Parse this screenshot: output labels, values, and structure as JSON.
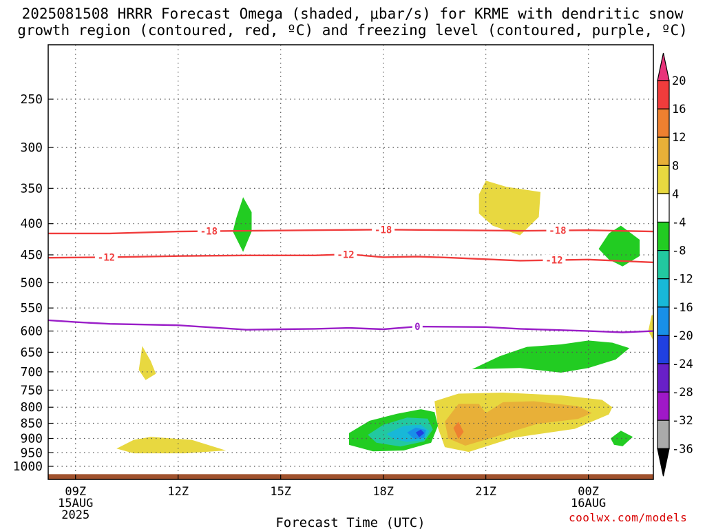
{
  "title": {
    "line1": "2025081508 HRRR Forecast Omega (shaded, μbar/s) for KRME with dendritic snow",
    "line2": "growth region (contoured, red, ºC) and freezing level (contoured, purple, ºC)"
  },
  "credit": "coolwx.com/models",
  "chart_data": {
    "type": "heatmap",
    "title": "2025081508 HRRR Forecast Omega (shaded, μbar/s) for KRME with dendritic snow growth region (contoured, red, ºC) and freezing level (contoured, purple, ºC)",
    "xlabel": "Forecast Time (UTC)",
    "ylabel": "",
    "x_range": [
      8.2,
      25.9
    ],
    "y_axis": "pressure (hPa), reversed",
    "ylim": [
      1050,
      200
    ],
    "x_ticks": [
      {
        "x": 9,
        "lines": [
          "09Z",
          "15AUG",
          "2025"
        ]
      },
      {
        "x": 12,
        "lines": [
          "12Z"
        ]
      },
      {
        "x": 15,
        "lines": [
          "15Z"
        ]
      },
      {
        "x": 18,
        "lines": [
          "18Z"
        ]
      },
      {
        "x": 21,
        "lines": [
          "21Z"
        ]
      },
      {
        "x": 24,
        "lines": [
          "00Z",
          "16AUG"
        ]
      }
    ],
    "y_ticks": [
      250,
      300,
      350,
      400,
      450,
      500,
      550,
      600,
      650,
      700,
      750,
      800,
      850,
      900,
      950,
      1000
    ],
    "grid": true,
    "colorbar": {
      "labels": [
        "20",
        "16",
        "12",
        "8",
        "4",
        "-4",
        "-8",
        "-12",
        "-16",
        "-20",
        "-24",
        "-28",
        "-32",
        "-36"
      ],
      "colors": [
        "#e8337a",
        "#f03c3c",
        "#ee8030",
        "#e8b038",
        "#e8d840",
        "#ffffff",
        "#22cc22",
        "#22c8a0",
        "#18b8d8",
        "#1890e8",
        "#2040e0",
        "#6820c8",
        "#a018c8",
        "#aaaaaa",
        "#000000"
      ]
    },
    "ground": {
      "from_hr": 8.2,
      "to_hr": 25.9,
      "top_hpa": 1030,
      "color": "#a0522d"
    },
    "contours": [
      {
        "label": "-18",
        "color": "#f03c3c",
        "points": [
          [
            8.2,
            415
          ],
          [
            10,
            415
          ],
          [
            12,
            412
          ],
          [
            14,
            411
          ],
          [
            16,
            410
          ],
          [
            18,
            409
          ],
          [
            20,
            410
          ],
          [
            22,
            411
          ],
          [
            24,
            410
          ],
          [
            25.9,
            412
          ]
        ],
        "label_at": [
          12.9,
          18.0,
          23.1
        ]
      },
      {
        "label": "-12",
        "color": "#f03c3c",
        "points": [
          [
            8.2,
            455
          ],
          [
            10,
            454
          ],
          [
            12,
            452
          ],
          [
            14,
            451
          ],
          [
            16,
            451
          ],
          [
            17,
            449
          ],
          [
            18,
            454
          ],
          [
            19,
            453
          ],
          [
            20,
            455
          ],
          [
            22,
            460
          ],
          [
            24,
            458
          ],
          [
            25.9,
            463
          ]
        ],
        "label_at": [
          9.9,
          16.9,
          23.0
        ]
      },
      {
        "label": "0",
        "color": "#9a1ec8",
        "points": [
          [
            8.2,
            576
          ],
          [
            9,
            580
          ],
          [
            10,
            584
          ],
          [
            12,
            587
          ],
          [
            14,
            597
          ],
          [
            15,
            596
          ],
          [
            16,
            595
          ],
          [
            17,
            593
          ],
          [
            18,
            596
          ],
          [
            19,
            590
          ],
          [
            21,
            591
          ],
          [
            22,
            595
          ],
          [
            24,
            600
          ],
          [
            25,
            603
          ],
          [
            25.9,
            600
          ]
        ],
        "label_at": [
          19.0
        ]
      }
    ],
    "shaded_regions": [
      {
        "value": -4,
        "color": "#22cc22",
        "points": [
          [
            13.7,
            392
          ],
          [
            13.9,
            362
          ],
          [
            14.15,
            383
          ],
          [
            14.15,
            412
          ],
          [
            13.9,
            445
          ],
          [
            13.6,
            412
          ]
        ]
      },
      {
        "value": -4,
        "color": "#22cc22",
        "points": [
          [
            24.3,
            440
          ],
          [
            24.6,
            415
          ],
          [
            24.95,
            403
          ],
          [
            25.5,
            425
          ],
          [
            25.5,
            452
          ],
          [
            25.0,
            470
          ],
          [
            24.6,
            458
          ]
        ]
      },
      {
        "value": 4,
        "color": "#e8d840",
        "points": [
          [
            20.8,
            358
          ],
          [
            21.0,
            340
          ],
          [
            21.6,
            348
          ],
          [
            22.6,
            355
          ],
          [
            22.55,
            390
          ],
          [
            22.0,
            418
          ],
          [
            21.2,
            403
          ],
          [
            20.8,
            385
          ]
        ]
      },
      {
        "value": -4,
        "color": "#22cc22",
        "points": [
          [
            20.6,
            693
          ],
          [
            21.4,
            660
          ],
          [
            22.2,
            637
          ],
          [
            23.2,
            631
          ],
          [
            24.0,
            622
          ],
          [
            24.7,
            627
          ],
          [
            25.2,
            640
          ],
          [
            24.8,
            668
          ],
          [
            24.0,
            690
          ],
          [
            23.2,
            702
          ],
          [
            22.0,
            690
          ]
        ]
      },
      {
        "value": 4,
        "color": "#e8d840",
        "points": [
          [
            10.85,
            695
          ],
          [
            10.9,
            665
          ],
          [
            10.95,
            635
          ],
          [
            11.2,
            672
          ],
          [
            11.35,
            705
          ],
          [
            11.05,
            722
          ]
        ]
      },
      {
        "value": 4,
        "color": "#e8d840",
        "points": [
          [
            10.2,
            935
          ],
          [
            10.7,
            905
          ],
          [
            11.2,
            895
          ],
          [
            12.4,
            905
          ],
          [
            13.4,
            942
          ],
          [
            12.2,
            952
          ],
          [
            10.7,
            952
          ]
        ]
      },
      {
        "value": 4,
        "color": "#e8d840",
        "points": [
          [
            19.5,
            782
          ],
          [
            20.2,
            760
          ],
          [
            21.5,
            757
          ],
          [
            23.2,
            765
          ],
          [
            24.4,
            778
          ],
          [
            24.7,
            800
          ],
          [
            24.6,
            822
          ],
          [
            23.6,
            868
          ],
          [
            21.8,
            898
          ],
          [
            20.5,
            947
          ],
          [
            19.8,
            930
          ],
          [
            19.6,
            865
          ]
        ]
      },
      {
        "value": 8,
        "color": "#e8b038",
        "points": [
          [
            19.8,
            845
          ],
          [
            20.2,
            790
          ],
          [
            20.8,
            790
          ],
          [
            21.0,
            818
          ],
          [
            21.5,
            785
          ],
          [
            22.4,
            782
          ],
          [
            23.7,
            797
          ],
          [
            24.1,
            818
          ],
          [
            23.7,
            836
          ],
          [
            22.5,
            852
          ],
          [
            21.2,
            897
          ],
          [
            20.4,
            925
          ],
          [
            19.9,
            900
          ]
        ]
      },
      {
        "value": 12,
        "color": "#ee8030",
        "points": [
          [
            20.05,
            865
          ],
          [
            20.2,
            845
          ],
          [
            20.35,
            878
          ],
          [
            20.2,
            902
          ]
        ]
      },
      {
        "value": -4,
        "color": "#22cc22",
        "points": [
          [
            17.0,
            882
          ],
          [
            17.6,
            842
          ],
          [
            18.4,
            820
          ],
          [
            19.1,
            806
          ],
          [
            19.5,
            815
          ],
          [
            19.6,
            858
          ],
          [
            19.4,
            915
          ],
          [
            18.6,
            942
          ],
          [
            17.7,
            945
          ],
          [
            17.0,
            922
          ]
        ]
      },
      {
        "value": -8,
        "color": "#22c8a0",
        "points": [
          [
            17.55,
            888
          ],
          [
            18.0,
            855
          ],
          [
            18.7,
            832
          ],
          [
            19.3,
            835
          ],
          [
            19.45,
            870
          ],
          [
            19.2,
            910
          ],
          [
            18.5,
            928
          ],
          [
            17.8,
            915
          ]
        ]
      },
      {
        "value": -12,
        "color": "#18b8d8",
        "points": [
          [
            18.1,
            885
          ],
          [
            18.6,
            858
          ],
          [
            19.1,
            855
          ],
          [
            19.35,
            875
          ],
          [
            19.2,
            905
          ],
          [
            18.7,
            912
          ],
          [
            18.3,
            902
          ]
        ]
      },
      {
        "value": -16,
        "color": "#1890e8",
        "points": [
          [
            18.7,
            880
          ],
          [
            18.95,
            864
          ],
          [
            19.25,
            872
          ],
          [
            19.2,
            898
          ],
          [
            18.9,
            902
          ]
        ]
      },
      {
        "value": -20,
        "color": "#2040e0",
        "points": [
          [
            18.95,
            880
          ],
          [
            19.1,
            870
          ],
          [
            19.2,
            882
          ],
          [
            19.05,
            896
          ]
        ]
      },
      {
        "value": -4,
        "color": "#22cc22",
        "points": [
          [
            24.65,
            900
          ],
          [
            24.95,
            874
          ],
          [
            25.3,
            895
          ],
          [
            25.0,
            927
          ],
          [
            24.75,
            922
          ]
        ]
      },
      {
        "value": 4,
        "color": "#e8d840",
        "points": [
          [
            25.75,
            600
          ],
          [
            25.85,
            565
          ],
          [
            25.9,
            565
          ],
          [
            25.9,
            622
          ]
        ]
      }
    ]
  }
}
